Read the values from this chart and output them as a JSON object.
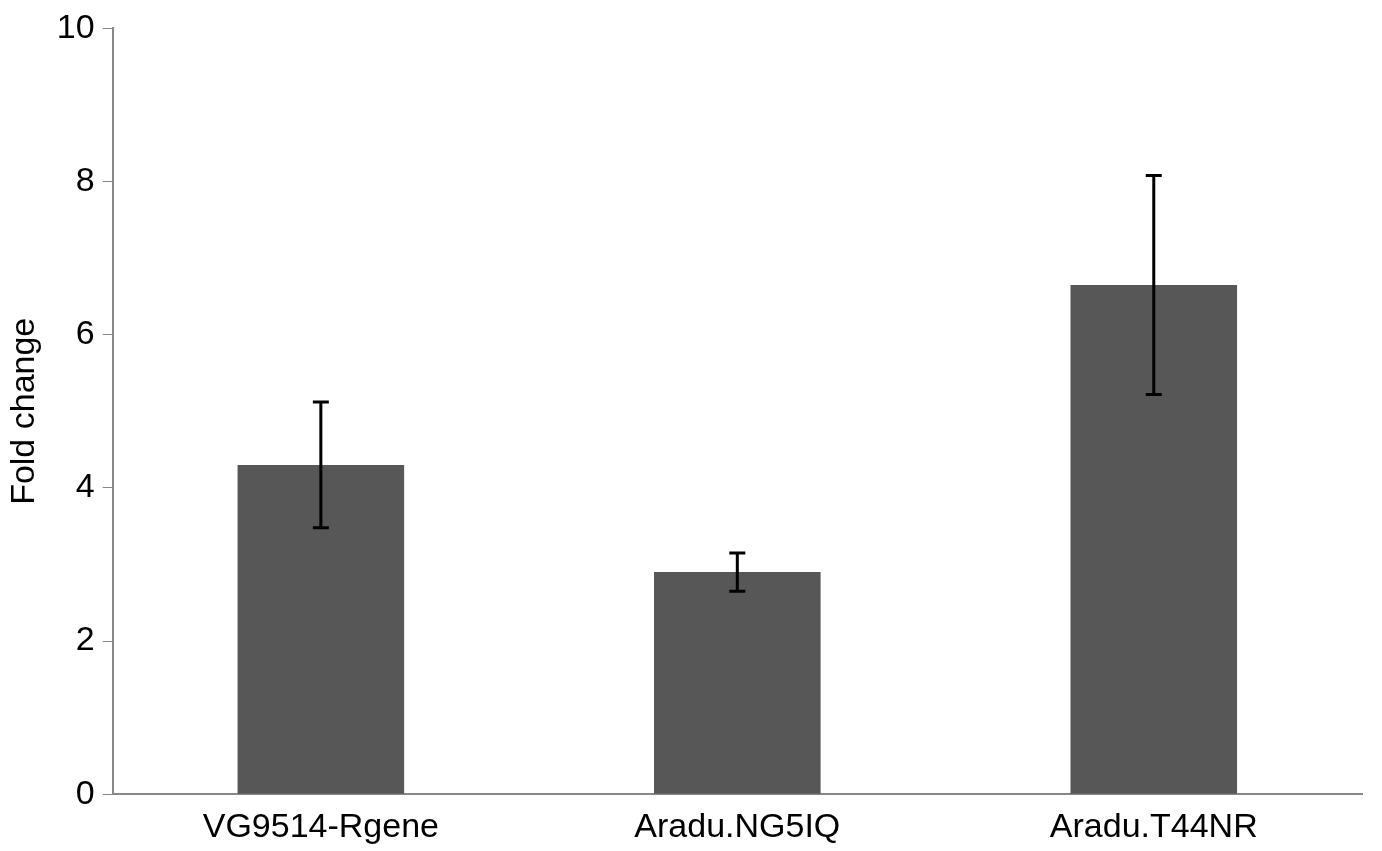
{
  "chart_data": {
    "type": "bar",
    "ylabel": "Fold change",
    "categories": [
      "VG9514-Rgene",
      "Aradu.NG5IQ",
      "Aradu.T44NR"
    ],
    "values": [
      4.3,
      2.9,
      6.65
    ],
    "errors": [
      0.82,
      0.25,
      1.43
    ],
    "color": "#575757",
    "ylim": [
      0,
      10
    ],
    "yticks": [
      0,
      2,
      4,
      6,
      8,
      10
    ],
    "grid": false,
    "legend": false
  }
}
